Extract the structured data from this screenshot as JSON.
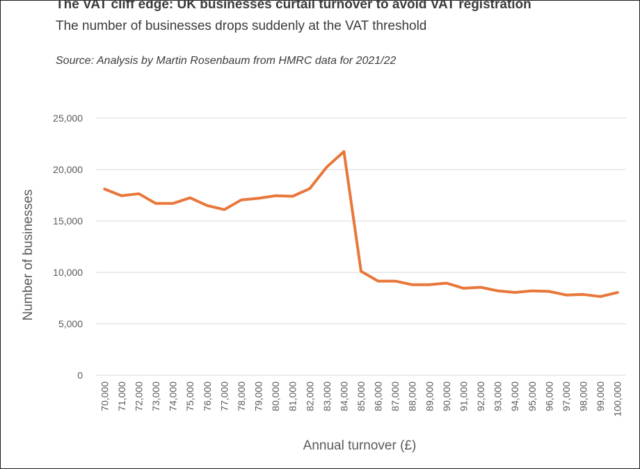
{
  "title": "The VAT cliff edge: UK businesses curtail turnover to avoid VAT registration",
  "subtitle": "The number of businesses drops suddenly at the VAT threshold",
  "source": "Source: Analysis by Martin Rosenbaum from HMRC data for 2021/22",
  "colors": {
    "line": "#E8773A",
    "grid": "#d9d9d9",
    "text": "#595959"
  },
  "chart_data": {
    "type": "line",
    "xlabel": "Annual turnover (£)",
    "ylabel": "Number of businesses",
    "ylim": [
      0,
      25000
    ],
    "yticks": [
      "0",
      "5,000",
      "10,000",
      "15,000",
      "20,000",
      "25,000"
    ],
    "grid": true,
    "categories": [
      "70,000",
      "71,000",
      "72,000",
      "73,000",
      "74,000",
      "75,000",
      "76,000",
      "77,000",
      "78,000",
      "79,000",
      "80,000",
      "81,000",
      "82,000",
      "83,000",
      "84,000",
      "85,000",
      "86,000",
      "87,000",
      "88,000",
      "89,000",
      "90,000",
      "91,000",
      "92,000",
      "93,000",
      "94,000",
      "95,000",
      "96,000",
      "97,000",
      "98,000",
      "99,000",
      "100,000"
    ],
    "series": [
      {
        "values": [
          18100,
          17450,
          17650,
          16700,
          16700,
          17250,
          16500,
          16100,
          17050,
          17200,
          17450,
          17400,
          18150,
          20250,
          21750,
          10100,
          9150,
          9150,
          8800,
          8800,
          8950,
          8450,
          8550,
          8200,
          8050,
          8200,
          8150,
          7800,
          7850,
          7650,
          8050
        ]
      }
    ]
  }
}
